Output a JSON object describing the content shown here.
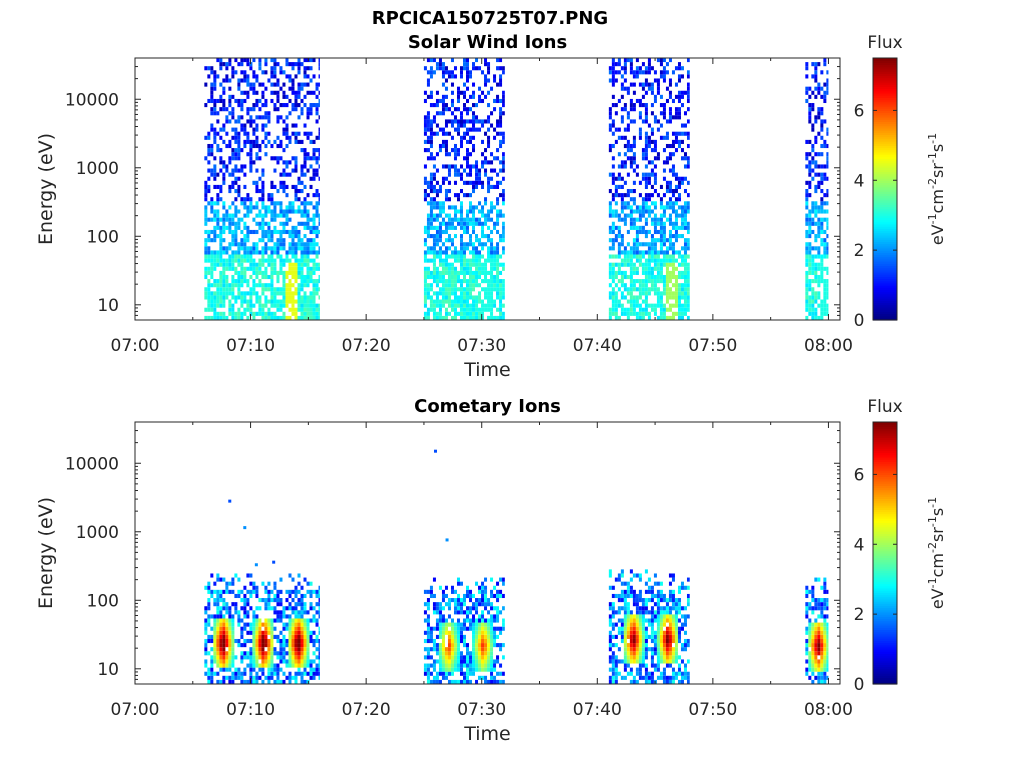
{
  "figure": {
    "filename": "RPCICA150725T07.PNG"
  },
  "colormap": {
    "name": "jet",
    "stops": [
      "#00007f",
      "#0000ff",
      "#007fff",
      "#00ffff",
      "#7fff7f",
      "#ffff00",
      "#ff7f00",
      "#ff0000",
      "#7f0000"
    ]
  },
  "chart_data": [
    {
      "type": "heatmap",
      "title": "Solar Wind Ions",
      "xlabel": "Time",
      "ylabel": "Energy (eV)",
      "y_scale": "log",
      "xlim": [
        "07:00",
        "08:01"
      ],
      "ylim": [
        6,
        40000
      ],
      "x_ticks": [
        "07:00",
        "07:10",
        "07:20",
        "07:30",
        "07:40",
        "07:50",
        "08:00"
      ],
      "y_ticks": [
        "10",
        "100",
        "1000",
        "10000"
      ],
      "colorbar": {
        "title": "Flux",
        "label": "eV-1cm-2sr-1s-1",
        "range": [
          0,
          7.5
        ],
        "ticks": [
          "0",
          "2",
          "4",
          "6"
        ]
      },
      "bursts": [
        {
          "start": "07:06",
          "end": "07:16",
          "energy_max": 35000,
          "peak_flux": 4.5,
          "peak_energy": 25
        },
        {
          "start": "07:25",
          "end": "07:32",
          "energy_max": 35000,
          "peak_flux": 3.0,
          "peak_energy": 20
        },
        {
          "start": "07:41",
          "end": "07:48",
          "energy_max": 35000,
          "peak_flux": 4.0,
          "peak_energy": 25
        },
        {
          "start": "07:58",
          "end": "08:00",
          "energy_max": 35000,
          "peak_flux": 3.0,
          "peak_energy": 15
        }
      ]
    },
    {
      "type": "heatmap",
      "title": "Cometary Ions",
      "xlabel": "Time",
      "ylabel": "Energy (eV)",
      "y_scale": "log",
      "xlim": [
        "07:00",
        "08:01"
      ],
      "ylim": [
        6,
        40000
      ],
      "x_ticks": [
        "07:00",
        "07:10",
        "07:20",
        "07:30",
        "07:40",
        "07:50",
        "08:00"
      ],
      "y_ticks": [
        "10",
        "100",
        "1000",
        "10000"
      ],
      "colorbar": {
        "title": "Flux",
        "label": "eV-1cm-2sr-1s-1",
        "range": [
          0,
          7.5
        ],
        "ticks": [
          "0",
          "2",
          "4",
          "6"
        ]
      },
      "bursts": [
        {
          "start": "07:06",
          "end": "07:16",
          "energy_max": 230,
          "peak_flux": 7.0,
          "peak_energy": 22,
          "peaks": [
            "07:07.5",
            "07:11",
            "07:14"
          ]
        },
        {
          "start": "07:25",
          "end": "07:32",
          "energy_max": 200,
          "peak_flux": 5.0,
          "peak_energy": 20,
          "peaks": [
            "07:27",
            "07:30"
          ]
        },
        {
          "start": "07:41",
          "end": "07:48",
          "energy_max": 270,
          "peak_flux": 6.5,
          "peak_energy": 25,
          "peaks": [
            "07:43",
            "07:46"
          ]
        },
        {
          "start": "07:58",
          "end": "08:00",
          "energy_max": 200,
          "peak_flux": 6.5,
          "peak_energy": 20,
          "peaks": [
            "07:59"
          ]
        }
      ],
      "outliers": [
        {
          "time": "07:08.2",
          "energy": 2800,
          "flux": 1.5
        },
        {
          "time": "07:09.5",
          "energy": 1150,
          "flux": 2.0
        },
        {
          "time": "07:10.5",
          "energy": 330,
          "flux": 2.0
        },
        {
          "time": "07:12",
          "energy": 360,
          "flux": 1.5
        },
        {
          "time": "07:26",
          "energy": 15000,
          "flux": 1.5
        },
        {
          "time": "07:27",
          "energy": 760,
          "flux": 2.0
        }
      ]
    }
  ]
}
